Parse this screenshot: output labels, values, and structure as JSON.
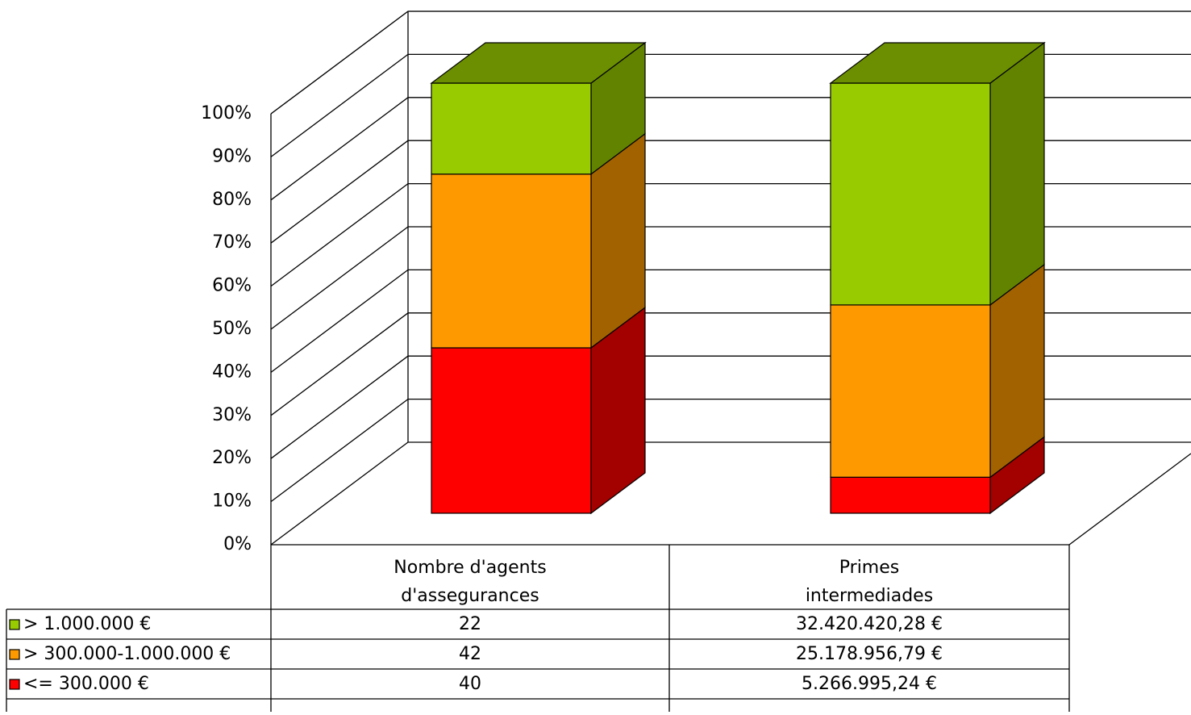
{
  "chart_data": {
    "type": "bar3d_stacked_percent",
    "categories": [
      [
        "Nombre d'agents",
        "d'assegurances"
      ],
      [
        "Primes",
        "intermediades"
      ]
    ],
    "series": [
      {
        "name": "> 1.000.000 €",
        "color": "#99cc00",
        "values": [
          22,
          32420420.28
        ],
        "value_labels": [
          "22",
          "32.420.420,28 €"
        ]
      },
      {
        "name": "> 300.000-1.000.000 €",
        "color": "#ff9900",
        "values": [
          42,
          25178956.79
        ],
        "value_labels": [
          "42",
          "25.178.956,79 €"
        ]
      },
      {
        "name": "<= 300.000 €",
        "color": "#ff0000",
        "values": [
          40,
          5266995.24
        ],
        "value_labels": [
          "40",
          "5.266.995,24 €"
        ]
      }
    ],
    "ylim": [
      0,
      100
    ],
    "yticks": [
      {
        "value": 0,
        "label": "0%"
      },
      {
        "value": 10,
        "label": "10%"
      },
      {
        "value": 20,
        "label": "20%"
      },
      {
        "value": 30,
        "label": "30%"
      },
      {
        "value": 40,
        "label": "40%"
      },
      {
        "value": 50,
        "label": "50%"
      },
      {
        "value": 60,
        "label": "60%"
      },
      {
        "value": 70,
        "label": "70%"
      },
      {
        "value": 80,
        "label": "80%"
      },
      {
        "value": 90,
        "label": "90%"
      },
      {
        "value": 100,
        "label": "100%"
      }
    ],
    "grid": true
  }
}
